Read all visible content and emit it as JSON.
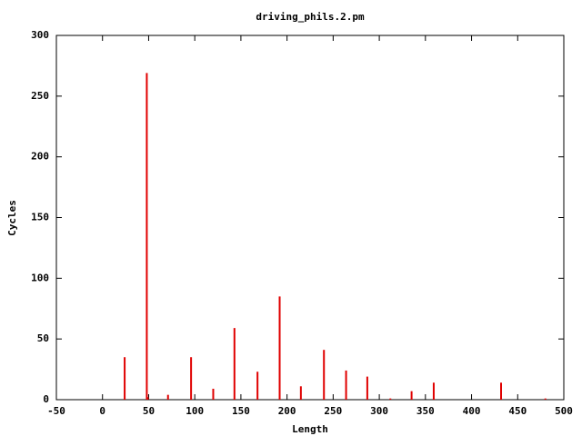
{
  "chart_data": {
    "type": "impulse",
    "title": "driving_phils.2.pm",
    "x_label": "Length",
    "y_label": "Cycles",
    "x": [
      24,
      48,
      49,
      71,
      96,
      120,
      143,
      168,
      192,
      215,
      240,
      264,
      287,
      312,
      335,
      359,
      432,
      480
    ],
    "values": [
      35,
      269,
      2,
      4,
      35,
      9,
      59,
      23,
      85,
      11,
      41,
      24,
      19,
      1,
      7,
      14,
      14,
      1
    ],
    "color": "#e00000",
    "xlim": [
      -50,
      500
    ],
    "xticks": [
      -50,
      0,
      50,
      100,
      150,
      200,
      250,
      300,
      350,
      400,
      450,
      500
    ],
    "ylim": [
      0,
      300
    ],
    "yticks": [
      0,
      50,
      100,
      150,
      200,
      250,
      300
    ],
    "grid": false
  }
}
